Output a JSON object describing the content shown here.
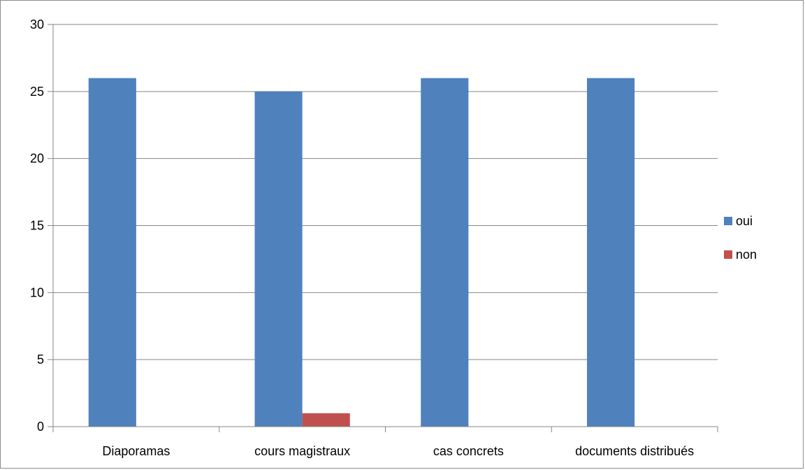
{
  "chart_data": {
    "type": "bar",
    "title": "",
    "xlabel": "",
    "ylabel": "",
    "categories": [
      "Diaporamas",
      "cours magistraux",
      "cas concrets",
      "documents distribués"
    ],
    "series": [
      {
        "name": "oui",
        "values": [
          26,
          25,
          26,
          26
        ],
        "color": "#4F81BD"
      },
      {
        "name": "non",
        "values": [
          0,
          1,
          0,
          0
        ],
        "color": "#C0504D"
      }
    ],
    "ylim": [
      0,
      30
    ],
    "yticks": [
      0,
      5,
      10,
      15,
      20,
      25,
      30
    ],
    "grid": true,
    "legend": "right"
  }
}
